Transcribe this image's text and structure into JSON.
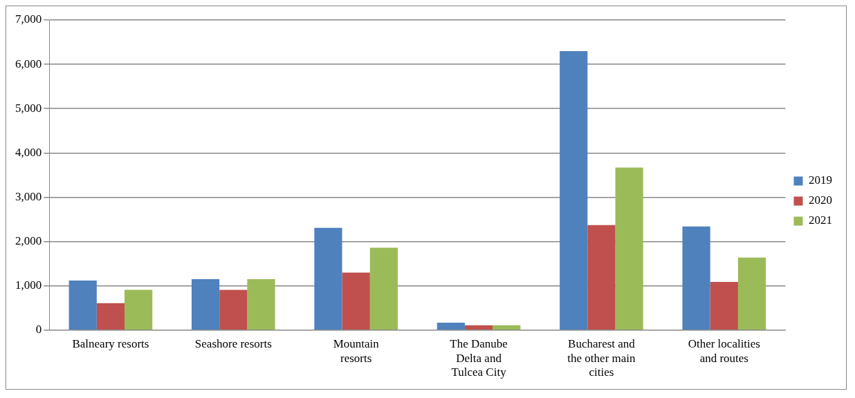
{
  "chart_data": {
    "type": "bar",
    "categories": [
      "Balneary resorts",
      "Seashore resorts",
      "Mountain resorts",
      "The Danube Delta and Tulcea City",
      "Bucharest and the other main cities",
      "Other localities and routes"
    ],
    "series": [
      {
        "name": "2019",
        "color": "#4f81bd",
        "values": [
          1120,
          1150,
          2310,
          170,
          6300,
          2340
        ]
      },
      {
        "name": "2020",
        "color": "#c0504d",
        "values": [
          610,
          910,
          1300,
          110,
          2370,
          1090
        ]
      },
      {
        "name": "2021",
        "color": "#9bbb59",
        "values": [
          910,
          1150,
          1860,
          110,
          3670,
          1640
        ]
      }
    ],
    "ylim": [
      0,
      7000
    ],
    "yticks": [
      {
        "value": 0,
        "label": "0"
      },
      {
        "value": 1000,
        "label": "1,000"
      },
      {
        "value": 2000,
        "label": "2,000"
      },
      {
        "value": 3000,
        "label": "3,000"
      },
      {
        "value": 4000,
        "label": "4,000"
      },
      {
        "value": 5000,
        "label": "5,000"
      },
      {
        "value": 6000,
        "label": "6,000"
      },
      {
        "value": 7000,
        "label": "7,000"
      }
    ],
    "grid": "y",
    "legend": "right"
  }
}
